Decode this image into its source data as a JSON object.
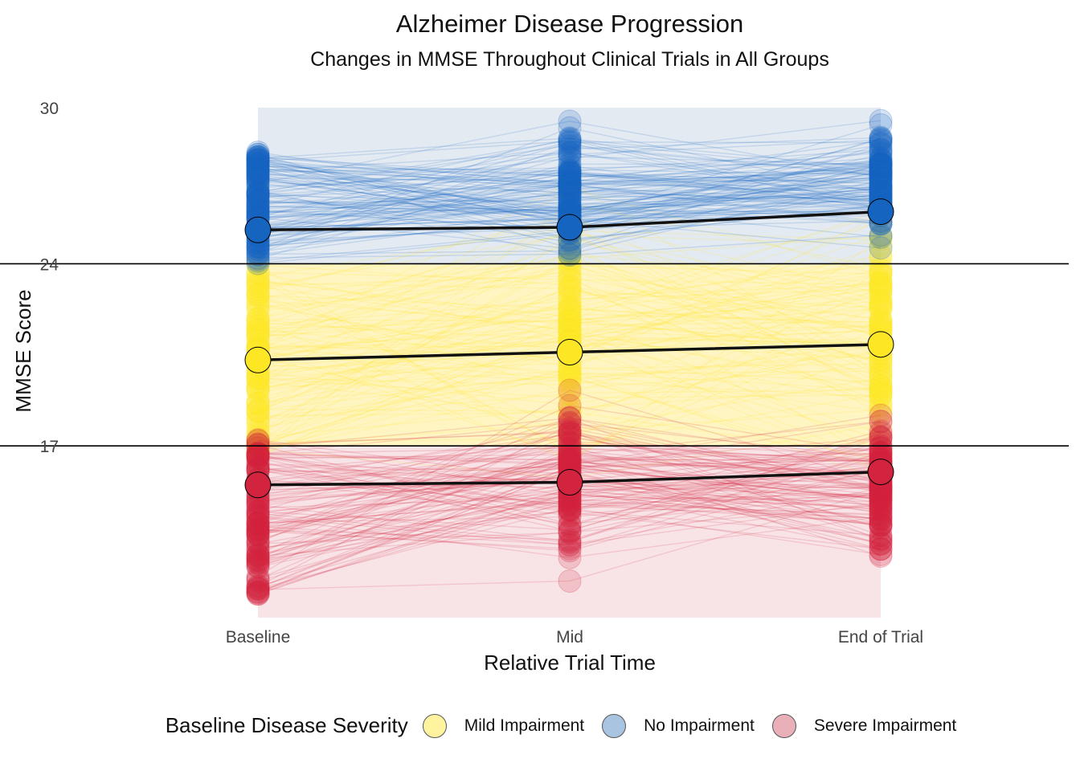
{
  "chart_data": {
    "type": "line",
    "title": "Alzheimer Disease Progression",
    "subtitle": "Changes in MMSE Throughout Clinical Trials in All Groups",
    "xlabel": "Relative Trial Time",
    "ylabel": "MMSE Score",
    "categories": [
      "Baseline",
      "Mid",
      "End of Trial"
    ],
    "yticks": [
      17,
      24,
      30
    ],
    "reference_lines": [
      17,
      24
    ],
    "ylim": [
      10.4,
      30.5
    ],
    "legend_title": "Baseline Disease Severity",
    "legend_position": "bottom",
    "grid": false,
    "series": [
      {
        "name": "Mild Impairment",
        "color": "#fde725",
        "light_color": "#fff3a0",
        "band": [
          17,
          24
        ],
        "mean": [
          20.3,
          20.6,
          20.9
        ],
        "individual_range": {
          "Baseline": [
            16.6,
            24.0
          ],
          "Mid": [
            14.2,
            28.6
          ],
          "End of Trial": [
            15.0,
            27.1
          ]
        }
      },
      {
        "name": "No Impairment",
        "color": "#1565c0",
        "light_color": "#a8c4e0",
        "band": [
          24,
          30
        ],
        "mean": [
          25.3,
          25.4,
          26.0
        ],
        "individual_range": {
          "Baseline": [
            24.0,
            28.3
          ],
          "Mid": [
            23.2,
            30.0
          ],
          "End of Trial": [
            24.2,
            30.0
          ]
        }
      },
      {
        "name": "Severe Impairment",
        "color": "#d2243f",
        "light_color": "#eab0ba",
        "band": [
          10.4,
          17
        ],
        "mean": [
          15.5,
          15.6,
          16.0
        ],
        "individual_range": {
          "Baseline": [
            11.3,
            17.3
          ],
          "Mid": [
            11.2,
            19.8
          ],
          "End of Trial": [
            12.1,
            18.7
          ]
        }
      }
    ]
  }
}
